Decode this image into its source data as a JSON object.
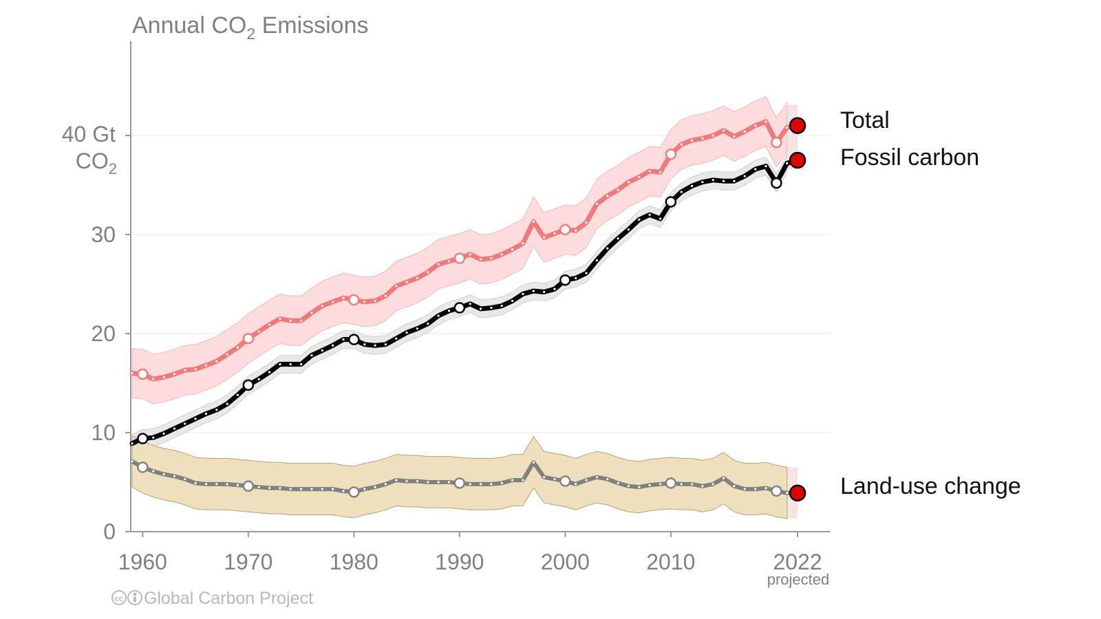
{
  "chart_data": {
    "type": "line",
    "title": "Annual CO",
    "title_subscript": "2",
    "title_suffix": " Emissions",
    "y_unit_line1": "40 Gt",
    "y_unit_line2": "CO",
    "y_unit_line2_subscript": "2",
    "ylim": [
      0,
      50
    ],
    "xlim": [
      1959,
      2023
    ],
    "y_ticks": [
      0,
      10,
      20,
      30
    ],
    "y_top_tick": 40,
    "x_ticks": [
      1960,
      1970,
      1980,
      1990,
      2000,
      2010,
      2022
    ],
    "x_tick_labels": [
      "1960",
      "1970",
      "1980",
      "1990",
      "2000",
      "2010",
      "2022"
    ],
    "projected_note": "projected",
    "grid": true,
    "credit": "Global Carbon Project",
    "colors": {
      "total_line": "#f07a7a",
      "total_band": "#fcdcdc",
      "fossil_line": "#000000",
      "fossil_band": "#e8e8e8",
      "land_line": "#808080",
      "land_band": "#eedfbd",
      "projection_marker": "#e00000",
      "projection_band": "#f5e4e4"
    },
    "x": [
      1959,
      1960,
      1961,
      1962,
      1963,
      1964,
      1965,
      1966,
      1967,
      1968,
      1969,
      1970,
      1971,
      1972,
      1973,
      1974,
      1975,
      1976,
      1977,
      1978,
      1979,
      1980,
      1981,
      1982,
      1983,
      1984,
      1985,
      1986,
      1987,
      1988,
      1989,
      1990,
      1991,
      1992,
      1993,
      1994,
      1995,
      1996,
      1997,
      1998,
      1999,
      2000,
      2001,
      2002,
      2003,
      2004,
      2005,
      2006,
      2007,
      2008,
      2009,
      2010,
      2011,
      2012,
      2013,
      2014,
      2015,
      2016,
      2017,
      2018,
      2019,
      2020,
      2021,
      2022
    ],
    "series": [
      {
        "name": "Total",
        "values": [
          16.0,
          15.9,
          15.4,
          15.6,
          15.9,
          16.3,
          16.4,
          16.8,
          17.2,
          17.9,
          18.6,
          19.5,
          20.2,
          20.9,
          21.5,
          21.3,
          21.3,
          22.1,
          22.8,
          23.2,
          23.6,
          23.4,
          23.2,
          23.3,
          23.8,
          24.8,
          25.2,
          25.6,
          26.2,
          27.0,
          27.3,
          27.6,
          28.0,
          27.5,
          27.6,
          28.0,
          28.5,
          29.1,
          31.3,
          29.7,
          30.1,
          30.5,
          30.4,
          31.2,
          33.1,
          33.9,
          34.5,
          35.3,
          35.8,
          36.4,
          36.3,
          38.1,
          39.1,
          39.5,
          39.7,
          40.0,
          40.5,
          39.9,
          40.4,
          41.0,
          41.4,
          39.3,
          40.8,
          40.6
        ],
        "band_width": 2.5,
        "circle_years": [
          1960,
          1970,
          1980,
          1990,
          2000,
          2010,
          2020
        ],
        "projection": 41.0
      },
      {
        "name": "Fossil carbon",
        "values": [
          8.9,
          9.4,
          9.5,
          9.9,
          10.4,
          10.9,
          11.4,
          11.9,
          12.3,
          12.9,
          13.8,
          14.8,
          15.4,
          16.1,
          16.9,
          16.9,
          16.9,
          17.8,
          18.3,
          18.8,
          19.4,
          19.4,
          18.9,
          18.8,
          18.9,
          19.5,
          20.1,
          20.5,
          21.0,
          21.8,
          22.3,
          22.6,
          23.0,
          22.5,
          22.6,
          22.8,
          23.3,
          24.0,
          24.3,
          24.2,
          24.5,
          25.4,
          25.6,
          26.1,
          27.4,
          28.6,
          29.6,
          30.5,
          31.5,
          32.0,
          31.6,
          33.3,
          34.3,
          34.9,
          35.3,
          35.5,
          35.4,
          35.4,
          35.9,
          36.6,
          36.9,
          35.2,
          37.2,
          37.5
        ],
        "band_width": 0.9,
        "circle_years": [
          1960,
          1970,
          1980,
          1990,
          2000,
          2010,
          2020
        ],
        "projection": 37.5
      },
      {
        "name": "Land-use change",
        "values": [
          7.1,
          6.5,
          6.1,
          5.8,
          5.6,
          5.3,
          4.9,
          4.8,
          4.8,
          4.8,
          4.7,
          4.6,
          4.5,
          4.4,
          4.4,
          4.3,
          4.3,
          4.3,
          4.3,
          4.3,
          4.1,
          4.0,
          4.3,
          4.5,
          4.8,
          5.2,
          5.1,
          5.1,
          5.0,
          5.0,
          5.0,
          4.9,
          4.8,
          4.8,
          4.8,
          4.9,
          5.2,
          5.2,
          7.0,
          5.5,
          5.3,
          5.1,
          4.8,
          5.2,
          5.5,
          5.3,
          4.9,
          4.6,
          4.5,
          4.7,
          4.8,
          4.9,
          4.8,
          4.8,
          4.6,
          4.8,
          5.4,
          4.6,
          4.3,
          4.3,
          4.4,
          4.1,
          3.9,
          3.9
        ],
        "band_width": 2.6,
        "circle_years": [
          1960,
          1970,
          1980,
          1990,
          2000,
          2010,
          2020
        ],
        "projection": 3.9
      }
    ]
  }
}
